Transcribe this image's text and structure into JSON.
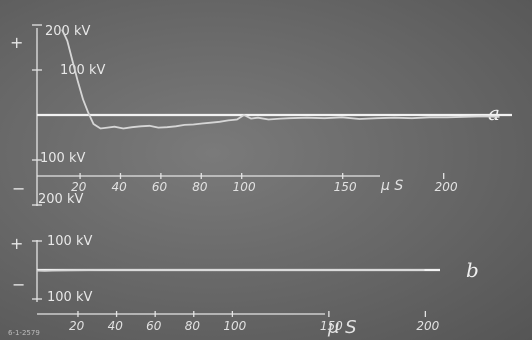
{
  "chart_data": [
    {
      "type": "line",
      "curve_label": "a",
      "sign_plus": "+",
      "sign_minus": "−",
      "y_tick_labels": [
        "200 kV",
        "100 kV",
        "100 kV",
        "200 kV"
      ],
      "y_tick_values": [
        200,
        100,
        -100,
        -200
      ],
      "ylim": [
        -200,
        200
      ],
      "x_tick_values": [
        20,
        40,
        60,
        80,
        100,
        150,
        200
      ],
      "x_tick_labels": [
        "20",
        "40",
        "60",
        "80",
        "100",
        "150",
        "200"
      ],
      "x_unit": "μ S",
      "xlim": [
        0,
        270
      ],
      "series": [
        {
          "x": [
            0,
            3,
            6,
            9,
            12,
            15,
            18,
            22,
            26,
            30,
            35,
            40,
            45,
            50,
            55,
            60,
            65,
            70,
            75,
            80,
            85,
            90,
            95,
            100,
            104,
            108,
            112,
            118,
            125,
            130,
            140,
            150,
            160,
            170,
            180,
            190,
            200,
            210,
            220,
            230,
            240,
            250
          ],
          "y": [
            190,
            165,
            120,
            75,
            35,
            5,
            -20,
            -30,
            -28,
            -26,
            -30,
            -27,
            -25,
            -24,
            -28,
            -27,
            -25,
            -22,
            -21,
            -19,
            -17,
            -15,
            -12,
            -10,
            0,
            -8,
            -6,
            -10,
            -8,
            -7,
            -6,
            -7,
            -5,
            -9,
            -7,
            -6,
            -7,
            -5,
            -5,
            -4,
            -3,
            -4
          ]
        }
      ]
    },
    {
      "type": "line",
      "curve_label": "b",
      "sign_plus": "+",
      "sign_minus": "−",
      "y_tick_labels": [
        "100 kV",
        "100 kV"
      ],
      "y_tick_values": [
        100,
        -100
      ],
      "ylim": [
        -100,
        100
      ],
      "x_tick_values": [
        20,
        40,
        60,
        80,
        100,
        150,
        200
      ],
      "x_tick_labels": [
        "20",
        "40",
        "60",
        "80",
        "100",
        "150",
        "200"
      ],
      "x_unit": "μ S",
      "xlim": [
        0,
        270
      ],
      "series": [
        {
          "x": [
            0,
            5,
            10,
            20,
            40,
            60,
            80,
            100,
            150,
            200,
            250
          ],
          "y": [
            -2,
            -3,
            -2,
            -1,
            0,
            0,
            0,
            0,
            0,
            0,
            0
          ]
        }
      ]
    }
  ],
  "corner_tag": "6-1-2579"
}
